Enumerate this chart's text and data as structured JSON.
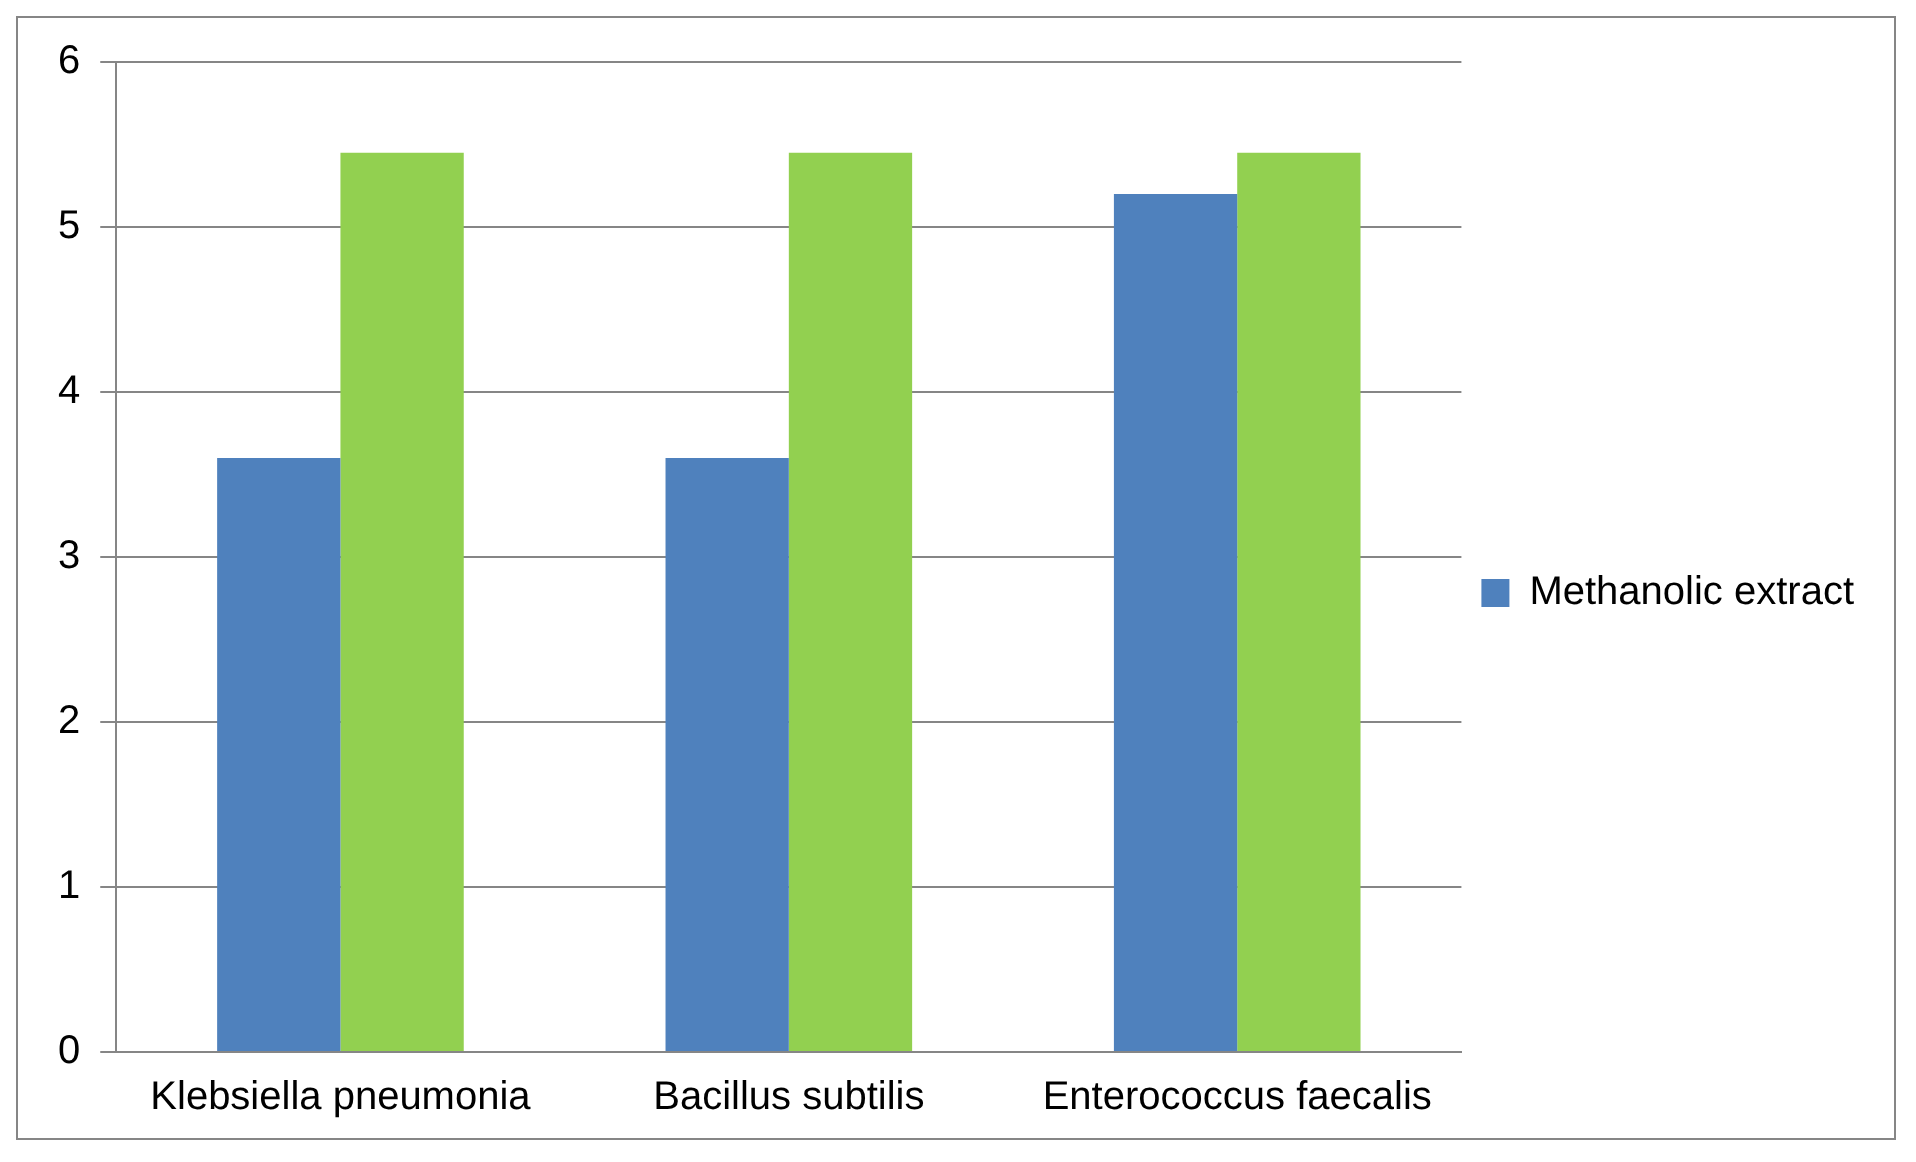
{
  "chart_data": {
    "type": "bar",
    "categories": [
      "Klebsiella pneumonia",
      "Bacillus subtilis",
      "Enterococcus faecalis"
    ],
    "series": [
      {
        "name": "Methanolic extract",
        "color": "#4f81bd",
        "values": [
          3.6,
          3.6,
          5.2
        ]
      },
      {
        "color": "#92d050",
        "values": [
          5.45,
          5.45,
          5.45
        ]
      }
    ],
    "ylim": [
      0,
      6
    ],
    "yticks": [
      0,
      1,
      2,
      3,
      4,
      5,
      6
    ],
    "grid": "y",
    "legend": "right"
  }
}
